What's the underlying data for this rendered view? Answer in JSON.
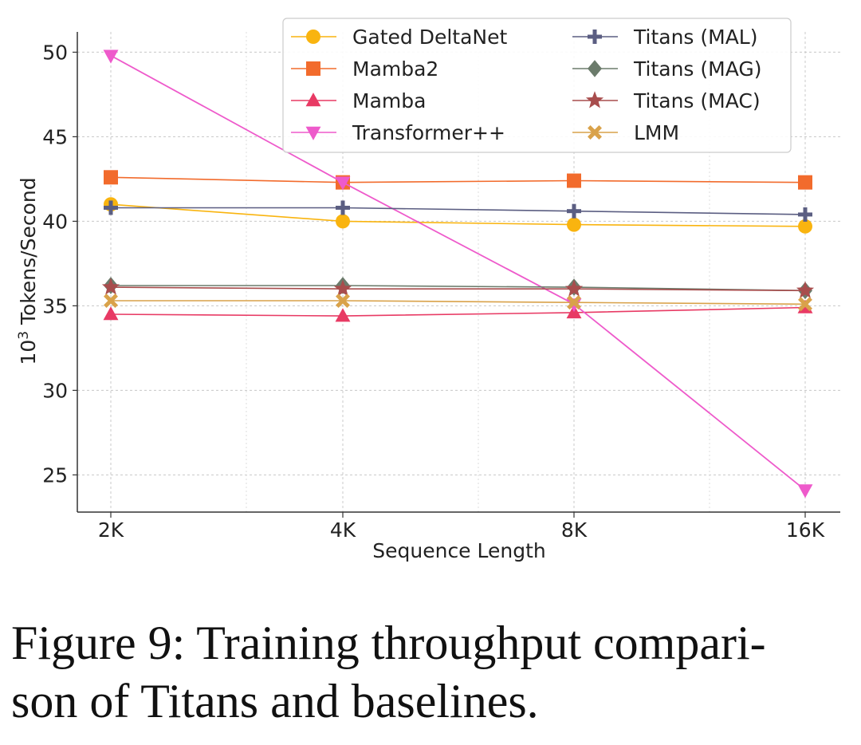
{
  "chart_data": {
    "type": "line",
    "title": "",
    "xlabel": "Sequence Length",
    "ylabel_base": "10",
    "ylabel_exp": "3",
    "ylabel_text": " Tokens/Second",
    "categories": [
      "2K",
      "4K",
      "8K",
      "16K"
    ],
    "ylim": [
      22.8,
      51.2
    ],
    "yticks": [
      25,
      30,
      35,
      40,
      45,
      50
    ],
    "grid": true,
    "legend_position": "top-right",
    "series": [
      {
        "name": "Gated DeltaNet",
        "color": "#F9B40F",
        "marker": "circle",
        "values": [
          41.0,
          40.0,
          39.8,
          39.7
        ]
      },
      {
        "name": "Mamba2",
        "color": "#F26B2C",
        "marker": "square",
        "values": [
          42.6,
          42.3,
          42.4,
          42.3
        ]
      },
      {
        "name": "Mamba",
        "color": "#E83A64",
        "marker": "triangle-up",
        "values": [
          34.5,
          34.4,
          34.6,
          34.9
        ]
      },
      {
        "name": "Transformer++",
        "color": "#EE5ACB",
        "marker": "triangle-down",
        "values": [
          49.8,
          42.3,
          35.1,
          24.1
        ]
      },
      {
        "name": "Titans (MAL)",
        "color": "#5B5E82",
        "marker": "plus",
        "values": [
          40.8,
          40.8,
          40.6,
          40.4
        ]
      },
      {
        "name": "Titans (MAG)",
        "color": "#6B7B6B",
        "marker": "diamond",
        "values": [
          36.2,
          36.2,
          36.1,
          35.9
        ]
      },
      {
        "name": "Titans (MAC)",
        "color": "#A84D4D",
        "marker": "star",
        "values": [
          36.1,
          36.0,
          36.0,
          35.9
        ]
      },
      {
        "name": "LMM",
        "color": "#D9A24A",
        "marker": "x",
        "values": [
          35.3,
          35.3,
          35.2,
          35.1
        ]
      }
    ]
  },
  "caption": "Figure 9: Training throughput compari-\nson of Titans and baselines."
}
